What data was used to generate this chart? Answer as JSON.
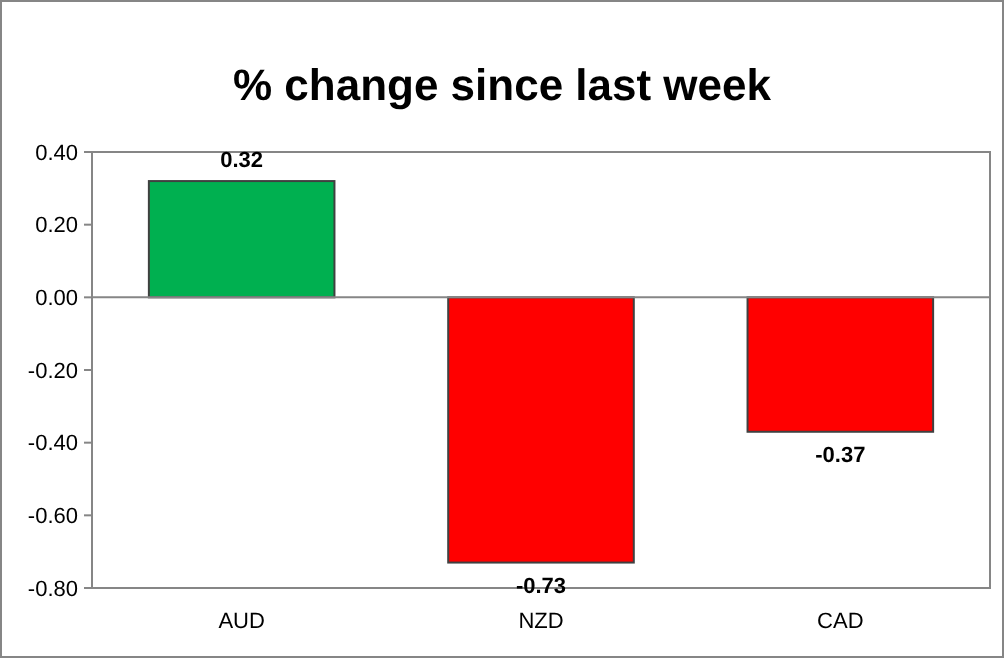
{
  "chart_data": {
    "type": "bar",
    "title": "% change since last week",
    "categories": [
      "AUD",
      "NZD",
      "CAD"
    ],
    "values": [
      0.32,
      -0.73,
      -0.37
    ],
    "colors": [
      "#00b050",
      "#ff0000",
      "#ff0000"
    ],
    "ylim": [
      -0.8,
      0.4
    ],
    "yticks": [
      {
        "value": -0.8,
        "label": "-0.80"
      },
      {
        "value": -0.6,
        "label": "-0.60"
      },
      {
        "value": -0.4,
        "label": "-0.40"
      },
      {
        "value": -0.2,
        "label": "-0.20"
      },
      {
        "value": 0,
        "label": "0.00"
      },
      {
        "value": 0.2,
        "label": "0.20"
      },
      {
        "value": 0.4,
        "label": "0.40"
      }
    ],
    "data_labels": true
  }
}
